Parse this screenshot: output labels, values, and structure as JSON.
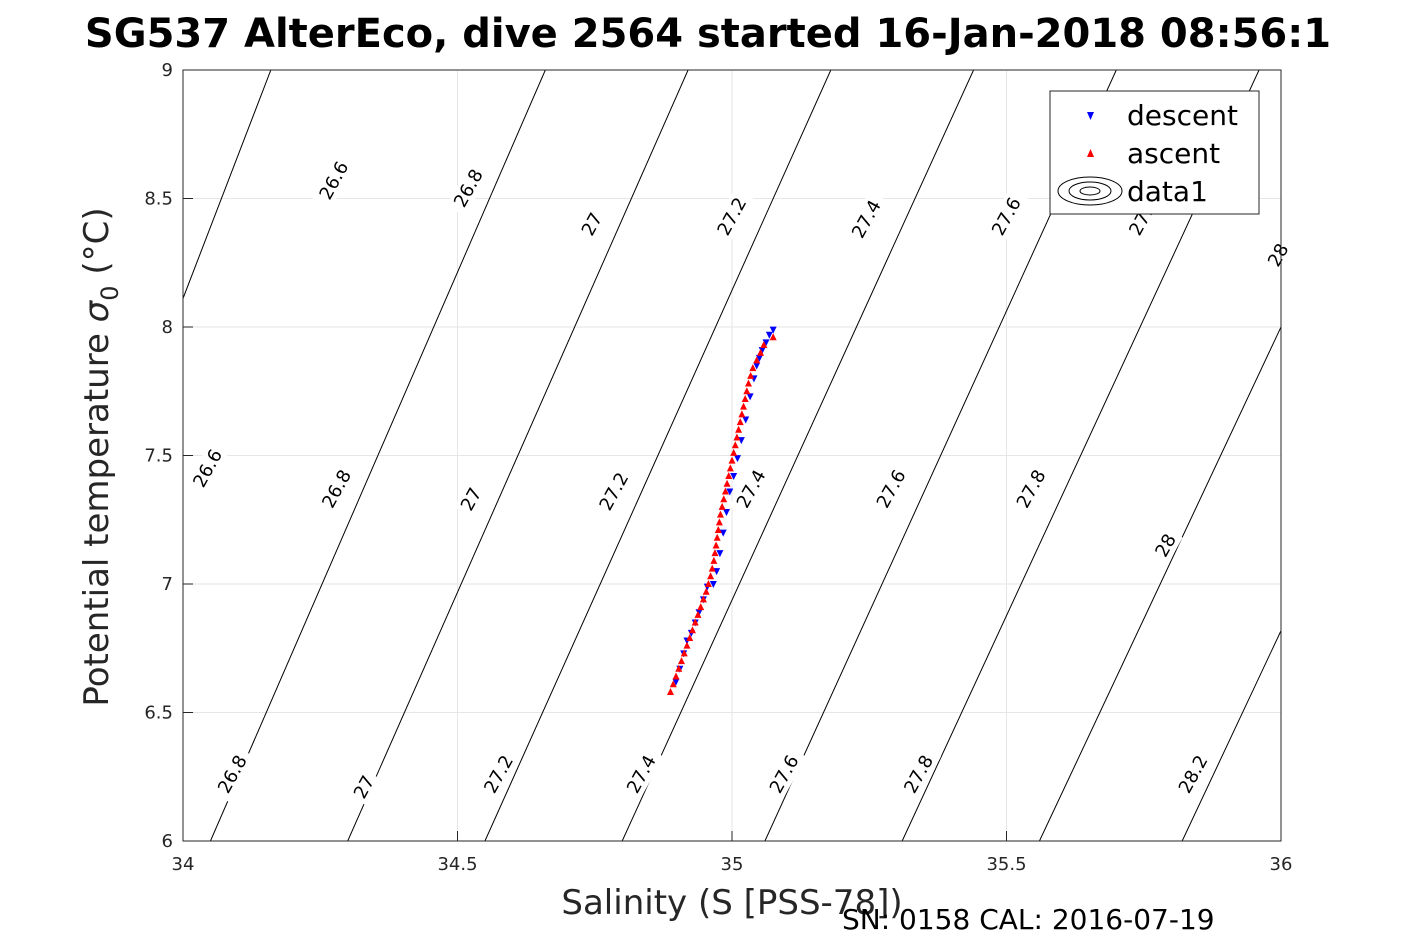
{
  "chart_data": {
    "type": "scatter",
    "title": "SG537 AlterEco, dive 2564 started 16-Jan-2018 08:56:1",
    "xlabel": "Salinity (S [PSS-78])",
    "ylabel": "Potential temperature σ0 (°C)",
    "ylabel_main": "Potential temperature ",
    "ylabel_sigma": "σ",
    "ylabel_sub": "0",
    "ylabel_unit": " (°C)",
    "footer": "SN: 0158  CAL: 2016-07-19",
    "xlim": [
      34,
      36
    ],
    "ylim": [
      6,
      9
    ],
    "x_ticks": [
      "34",
      "34.5",
      "35",
      "35.5",
      "36"
    ],
    "y_ticks": [
      "6",
      "6.5",
      "7",
      "7.5",
      "8",
      "8.5",
      "9"
    ],
    "grid": true,
    "legend_position": "top-right",
    "legend": [
      "descent",
      "ascent",
      "data1"
    ],
    "series": [
      {
        "name": "descent",
        "marker": "triangle-down",
        "color": "#0000ff",
        "points": [
          [
            35.075,
            7.99
          ],
          [
            35.068,
            7.97
          ],
          [
            35.062,
            7.94
          ],
          [
            35.055,
            7.91
          ],
          [
            35.05,
            7.88
          ],
          [
            35.045,
            7.85
          ],
          [
            35.04,
            7.8
          ],
          [
            35.033,
            7.73
          ],
          [
            35.025,
            7.64
          ],
          [
            35.017,
            7.56
          ],
          [
            35.01,
            7.49
          ],
          [
            35.003,
            7.42
          ],
          [
            34.996,
            7.36
          ],
          [
            34.99,
            7.28
          ],
          [
            34.984,
            7.2
          ],
          [
            34.978,
            7.12
          ],
          [
            34.972,
            7.05
          ],
          [
            34.966,
            7.0
          ],
          [
            34.955,
            6.99
          ],
          [
            34.948,
            6.94
          ],
          [
            34.94,
            6.89
          ],
          [
            34.933,
            6.85
          ],
          [
            34.926,
            6.81
          ],
          [
            34.918,
            6.78
          ],
          [
            34.912,
            6.73
          ],
          [
            34.905,
            6.67
          ],
          [
            34.898,
            6.62
          ]
        ]
      },
      {
        "name": "ascent",
        "marker": "triangle-up",
        "color": "#ff0000",
        "points": [
          [
            34.888,
            6.58
          ],
          [
            34.893,
            6.61
          ],
          [
            34.898,
            6.64
          ],
          [
            34.903,
            6.67
          ],
          [
            34.908,
            6.7
          ],
          [
            34.913,
            6.73
          ],
          [
            34.918,
            6.76
          ],
          [
            34.923,
            6.79
          ],
          [
            34.928,
            6.82
          ],
          [
            34.933,
            6.85
          ],
          [
            34.938,
            6.88
          ],
          [
            34.943,
            6.91
          ],
          [
            34.948,
            6.94
          ],
          [
            34.953,
            6.97
          ],
          [
            34.957,
            7.0
          ],
          [
            34.961,
            7.03
          ],
          [
            34.964,
            7.06
          ],
          [
            34.967,
            7.09
          ],
          [
            34.969,
            7.12
          ],
          [
            34.971,
            7.15
          ],
          [
            34.973,
            7.18
          ],
          [
            34.975,
            7.21
          ],
          [
            34.977,
            7.24
          ],
          [
            34.979,
            7.27
          ],
          [
            34.982,
            7.3
          ],
          [
            34.985,
            7.33
          ],
          [
            34.988,
            7.36
          ],
          [
            34.991,
            7.39
          ],
          [
            34.994,
            7.42
          ],
          [
            34.997,
            7.45
          ],
          [
            35.0,
            7.48
          ],
          [
            35.003,
            7.51
          ],
          [
            35.006,
            7.54
          ],
          [
            35.009,
            7.57
          ],
          [
            35.012,
            7.6
          ],
          [
            35.015,
            7.63
          ],
          [
            35.018,
            7.66
          ],
          [
            35.021,
            7.69
          ],
          [
            35.024,
            7.72
          ],
          [
            35.027,
            7.75
          ],
          [
            35.03,
            7.78
          ],
          [
            35.034,
            7.81
          ],
          [
            35.038,
            7.84
          ],
          [
            35.045,
            7.87
          ],
          [
            35.052,
            7.9
          ],
          [
            35.058,
            7.93
          ],
          [
            35.075,
            7.96
          ]
        ]
      }
    ],
    "contours": {
      "levels": [
        26.6,
        26.8,
        27,
        27.2,
        27.4,
        27.6,
        27.8,
        28,
        28.2
      ],
      "segments": [
        {
          "level": 26.6,
          "s_bottom": 33.62,
          "s_top": 34.16
        },
        {
          "level": 26.8,
          "s_bottom": 34.05,
          "s_top": 34.66
        },
        {
          "level": 27,
          "s_bottom": 34.3,
          "s_top": 34.92
        },
        {
          "level": 27.2,
          "s_bottom": 34.55,
          "s_top": 35.18
        },
        {
          "level": 27.4,
          "s_bottom": 34.8,
          "s_top": 35.44
        },
        {
          "level": 27.6,
          "s_bottom": 35.06,
          "s_top": 35.7
        },
        {
          "level": 27.8,
          "s_bottom": 35.31,
          "s_top": 35.96
        },
        {
          "level": 28,
          "s_bottom": 35.56,
          "s_top": 36.22
        },
        {
          "level": 28.2,
          "s_bottom": 35.82,
          "s_top": 36.48
        }
      ],
      "labels": [
        {
          "text": "26.6",
          "s": 34.275,
          "t": 8.57
        },
        {
          "text": "26.8",
          "s": 34.52,
          "t": 8.54
        },
        {
          "text": "27",
          "s": 34.745,
          "t": 8.4
        },
        {
          "text": "27.2",
          "s": 35.0,
          "t": 8.43
        },
        {
          "text": "27.4",
          "s": 35.245,
          "t": 8.42
        },
        {
          "text": "27.6",
          "s": 35.5,
          "t": 8.43
        },
        {
          "text": "27.8",
          "s": 35.75,
          "t": 8.43
        },
        {
          "text": "28",
          "s": 35.995,
          "t": 8.28
        },
        {
          "text": "26.6",
          "s": 34.045,
          "t": 7.45
        },
        {
          "text": "26.8",
          "s": 34.28,
          "t": 7.37
        },
        {
          "text": "27",
          "s": 34.525,
          "t": 7.33
        },
        {
          "text": "27.2",
          "s": 34.785,
          "t": 7.36
        },
        {
          "text": "27.4",
          "s": 35.035,
          "t": 7.37
        },
        {
          "text": "27.6",
          "s": 35.29,
          "t": 7.37
        },
        {
          "text": "27.8",
          "s": 35.545,
          "t": 7.37
        },
        {
          "text": "28",
          "s": 35.79,
          "t": 7.15
        },
        {
          "text": "26.8",
          "s": 34.09,
          "t": 6.26
        },
        {
          "text": "27",
          "s": 34.33,
          "t": 6.21
        },
        {
          "text": "27.2",
          "s": 34.575,
          "t": 6.26
        },
        {
          "text": "27.4",
          "s": 34.835,
          "t": 6.26
        },
        {
          "text": "27.6",
          "s": 35.095,
          "t": 6.26
        },
        {
          "text": "27.8",
          "s": 35.34,
          "t": 6.26
        },
        {
          "text": "28.2",
          "s": 35.84,
          "t": 6.26
        }
      ]
    }
  },
  "colors": {
    "descent": "#0000ff",
    "ascent": "#ff0000",
    "contour": "#000000",
    "grid": "#e6e6e6",
    "axis": "#262626"
  }
}
